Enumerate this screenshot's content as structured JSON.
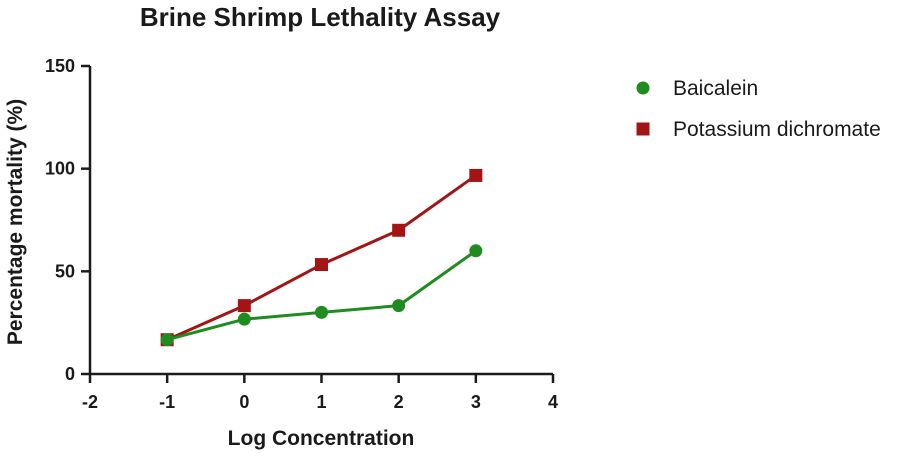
{
  "chart_data": {
    "type": "line",
    "title": "Brine Shrimp Lethality Assay",
    "xlabel": "Log Concentration",
    "ylabel": "Percentage mortality (%)",
    "xlim": [
      -2,
      4
    ],
    "ylim": [
      0,
      150
    ],
    "x_ticks": [
      "-2",
      "-1",
      "0",
      "1",
      "2",
      "3",
      "4"
    ],
    "y_ticks": [
      "0",
      "50",
      "100",
      "150"
    ],
    "grid": false,
    "legend_position": "right",
    "series": [
      {
        "name": "Baicalein",
        "marker": "circle",
        "color": "#1e8c1e",
        "x": [
          -1,
          0,
          1,
          2,
          3
        ],
        "y": [
          16.7,
          26.7,
          30,
          33.3,
          60
        ]
      },
      {
        "name": "Potassium dichromate",
        "marker": "square",
        "color": "#a31515",
        "x": [
          -1,
          0,
          1,
          2,
          3
        ],
        "y": [
          16.7,
          33.3,
          53.3,
          70,
          96.7
        ]
      }
    ]
  }
}
